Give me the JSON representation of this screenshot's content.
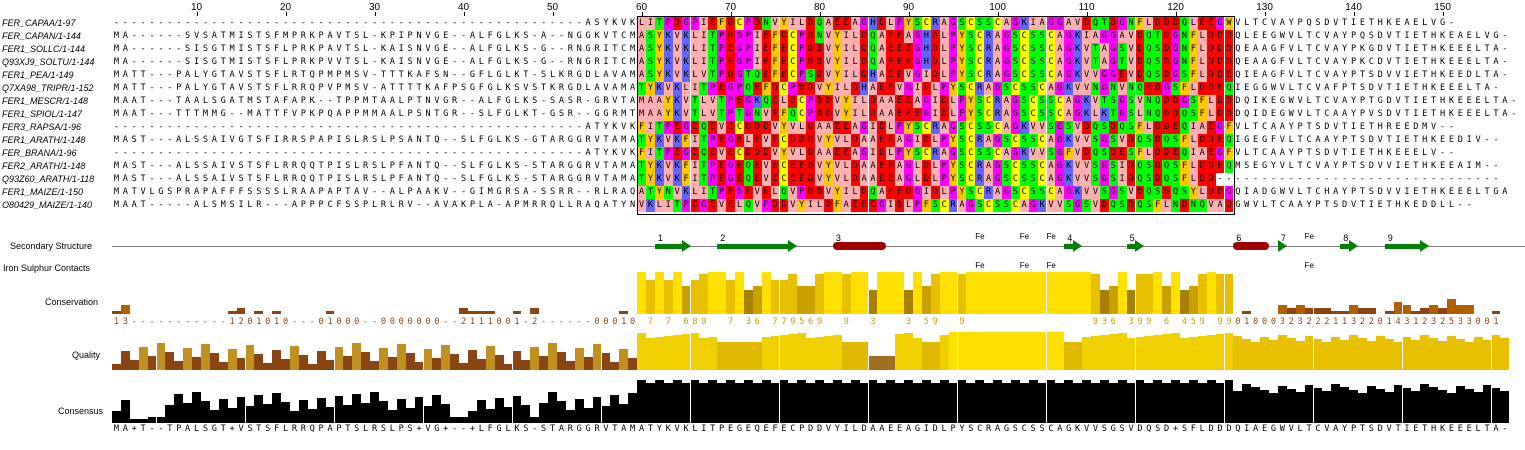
{
  "ruler": {
    "ticks": [
      10,
      20,
      30,
      40,
      50,
      60,
      70,
      80,
      90,
      100,
      110,
      120,
      130,
      140,
      150
    ]
  },
  "sequences": [
    {
      "name": "FER_CAPAA/1-97",
      "seq": "-----------------------------------------------------ASYKVKLITPDGPIEFDCPDNVYILDQAEEAGHDLPYSCRAGSCSSCAGKIAGGAVDQTDGNFLDDDQLEEGWVLTCVAYPQSDVTIETHKEAELVG-"
    },
    {
      "name": "FER_CAPAN/1-144",
      "seq": "MA------SVSATMISTSFMPRKPAVTSL-KPIPNVGE--ALFGLKS-A--NGGKVTCMASYKVKLITPDGPIEFDCPDNVYILDQAEEAGHDLPYSCRAGSCSSCAGKIAGGAVDQTDGNFLDDDQLEEGWVLTCVAYPQSDVTIETHKEAELVG-"
    },
    {
      "name": "FER1_SOLLC/1-144",
      "seq": "MA------SISGTMISTSFLPRKPAVTSL-KAISNVGE--ALFGLKS-G--RNGRITCMASYKVKLITPEGPIEFECPDDVYILDQAEEEGHDLPYSCRAGSCSSCAGKVTAGSVDQSDGNFLDDDQEAAGFVLTCVAYPKGDVTIETHKEEELTA-"
    },
    {
      "name": "Q93XJ9_SOLTU/1-144",
      "seq": "MA------SISGTMISTSFLPRKPVVTSL-KAISNVGE--ALFGLKS-G--RNGRITCMASYKVKLITPEGPIEFECPDDVYILDQAEEEGHDLPYSCRAGSCSSCAGKVTAGTVDQSDGNFLDDDQEAAGFVLTCVAYPKCDVTIETHKEEELTA-"
    },
    {
      "name": "FER1_PEA/1-149",
      "seq": "MATT---PALYGTAVSTSFLRTQPMPMSV-TTTKAFSN--GFLGLKT-SLKRGDLAVAMASYKVKLVTPDGTQEFECPSDVYILDHAEEVGIDLPYSCRAGSCSSCAGKVVGGEVDQSDGSFLDDEQIEAGFVLTCVAYPTSDVVIETHKEEDLTA-"
    },
    {
      "name": "Q7XA98_TRIPR/1-152",
      "seq": "MATT---PALYGTAVSTSFLRRQPVPMSV-ATTTTKAFPSGFGLKSVSTKRGDLAVAMATYKVKLITPEGPQEFDCPDDVYILDHAEEVGIELPYSCRAGSCSSCAGKVVNGNVNQEDGSFLDDEQIEGGWVLTCVAFPTSDVTIETHKEEELTA-"
    },
    {
      "name": "FER1_MESCR/1-148",
      "seq": "MAAT---TAALSGATMSTAFAPK--TPPMTAALPTNVGR--ALFGLKS-SASR-GRVTAMAAYKVTLVTPEGKQELECPDDVYILDAAEEAGIDLPYSCRAGSCSSCAGKVTSGSVNQDDGSFLDDDQIKEGWVLTCVAYPTGDVTIETHKEEELTA-"
    },
    {
      "name": "FER1_SPIOL/1-147",
      "seq": "MAAT---TTTMMG--MATTFVPKPQAPPMMAALPSNTGR--SLFGLKT-GSR--GGRMTMAAYKVTLVTPTGNVEFQCPDDVYILDAAEEEGIDLPYSCRAGSCSSCAGKLKTGSLNQDDQSFLDDDQIDEGWVLTCAAYPVSDVTIETHKEEELTA-"
    },
    {
      "name": "FER3_RAPSA/1-96",
      "seq": "-----------------------------------------------------ATYKVKFITPEGEQEVECDDDVYVLDAAEEAGIDLPYSCRAGSCSSCAGKVVSGSVDQSDQSFLDDEQIAEGFVLTCAAYPTSDVTIETHREEDMV--"
    },
    {
      "name": "FER1_ARATH/1-148",
      "seq": "MAST---ALSSAIVGTSFIRRSPAPISLRSLPSANTQ--SLFGLKS-GTARGGRVTAMATYKVKFITPEGELEVECDDDVYVLDAAEEAGIDLPYSCRAGSCSSCAGKVVSGSVDQSDQSFLDDEQIGEGFVLTCAAYPTSDVTIETHKEEDIV--"
    },
    {
      "name": "FER_BRANA/1-96",
      "seq": "-----------------------------------------------------ATYKVKFITPEGEQEVECDDDVYVLDAAEEAGIDLPYSCRAGSCSSCAGKVVSGFVDQSDESFLDDEQIAEGFVLTCAAYPTSDVTIETHKEEELV--"
    },
    {
      "name": "FER2_ARATH/1-148",
      "seq": "MAST---ALSSAIVSTSFLRRQQTPISLRSLPFANTQ--SLFGLKS-STARGGRVTAMATYKVKFITPEGEQEVECEEDVYVLDAAEEAGLDLPYSCRAGSCSSCAGKVVSGSIDQSDQSFLDDEQMSEGYVLTCVAYPTSDVVIETHKEEAIM--"
    },
    {
      "name": "Q93Z60_ARATH/1-118",
      "seq": "MAST---ALSSAIVSTSFLRRQQTPISLRSLPFANTQ--SLFGLKS-STARGGRVTAMATYKVKFITPEGEQEVECEEDVYVLDAAEEAGLDLPYSCRAGSCSSCAGKVVSGSIDQSDQSFLDD--------------------------------"
    },
    {
      "name": "FER1_MAIZE/1-150",
      "seq": "MATVLGSPRAPAFFFSSSSLRAAPAPTAV--ALPAAKV--GIMGRSA-SSRR--RLRAQATYNVKLITPEGEVELQVPDDVYILDQAEEDGIDLPYSCRAGSCSSCAGKVVSGSVDQSDQSYLDDGQIADGWVLTCHAYPTSDVVIETHKEEELTGA"
    },
    {
      "name": "O80429_MAIZE/1-140",
      "seq": "MAAT-----ALSMSILR---APPPCFSSPLRLRV--AVAKPLA-APMRRQLLRAQATYNVKLITPEGEVELQVPDDVYILDFAEEEGIDLPFSCRAGSCSSCAGKVVSGSVDQSDQSFLNDNQVADGWVLTCAAYPTSDVTIETHKEDDLL--"
    }
  ],
  "annotations": {
    "secondary_structure_label": "Secondary Structure",
    "iron_sulphur_label": "Iron Sulphur Contacts",
    "conservation_label": "Conservation",
    "quality_label": "Quality",
    "consensus_label": "Consensus",
    "ss_numbers": [
      "1",
      "2",
      "3",
      "4",
      "5",
      "6",
      "7",
      "8",
      "9"
    ],
    "fe_label": "Fe",
    "conservation_scores": "13-----------1201010---01000--0000000--2111001-2------00010*7*7*689**7*36*779569**9**3***3*59**9**************936*399*6*459*99010003232221132201431232533001 0-",
    "consensus_seq": "MA+T--TPALSGT+VSTSFLRRQPAPTSLRSLPS+VG+--+LFGLKS-STARGGRVTAMATYKVKLITPEGEQEFECPDDVYILDAAEEAGIDLPYSCRAGSCSSCAGKVVSGSVDQSD+SFLDDDQIAEGWVLTCVAYPTSDVTIETHKEEELTA-"
  },
  "colors": {
    "conservation_low": "#8b4513",
    "conservation_high": "#ffe000",
    "helix": "#a00000",
    "sheet": "#008000"
  }
}
